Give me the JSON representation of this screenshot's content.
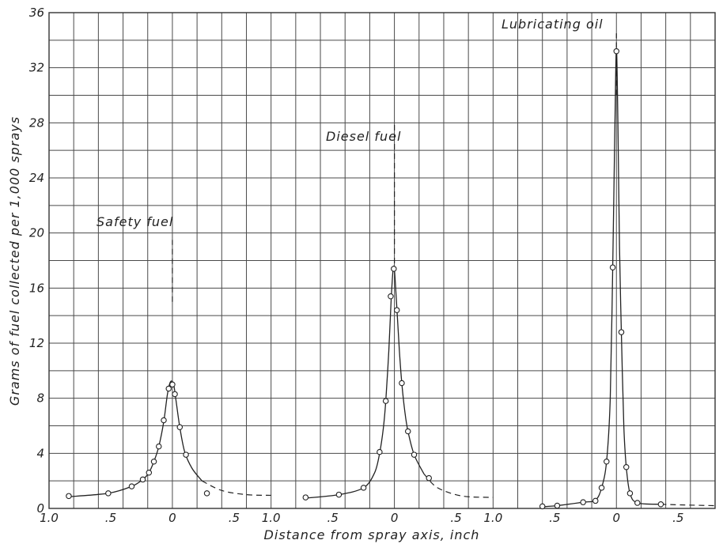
{
  "chart_data": {
    "type": "line",
    "ylabel": "Grams of fuel collected per 1,000 sprays",
    "xlabel": "Distance from spray axis, inch",
    "ylim": [
      0,
      36
    ],
    "y_ticks": [
      "0",
      "4",
      "8",
      "12",
      "16",
      "20",
      "24",
      "28",
      "32",
      "36"
    ],
    "x_tick_labels": [
      "1.0",
      ".5",
      "0",
      ".5"
    ],
    "grid": true,
    "panels": [
      {
        "name": "Safety fuel",
        "xlim": [
          -1.0,
          0.8
        ],
        "points": [
          [
            -0.84,
            0.9
          ],
          [
            -0.52,
            1.1
          ],
          [
            -0.33,
            1.6
          ],
          [
            -0.24,
            2.1
          ],
          [
            -0.19,
            2.6
          ],
          [
            -0.15,
            3.4
          ],
          [
            -0.11,
            4.5
          ],
          [
            -0.07,
            6.4
          ],
          [
            -0.03,
            8.7
          ],
          [
            0.0,
            9.0
          ],
          [
            0.02,
            8.3
          ],
          [
            0.06,
            5.9
          ],
          [
            0.11,
            3.9
          ],
          [
            0.28,
            1.1
          ]
        ],
        "curve": [
          [
            -0.84,
            0.85
          ],
          [
            -0.52,
            1.1
          ],
          [
            -0.33,
            1.6
          ],
          [
            -0.24,
            2.1
          ],
          [
            -0.19,
            2.6
          ],
          [
            -0.15,
            3.4
          ],
          [
            -0.11,
            4.5
          ],
          [
            -0.07,
            6.3
          ],
          [
            -0.04,
            8.3
          ],
          [
            -0.015,
            9.2
          ],
          [
            0.01,
            9.0
          ],
          [
            0.03,
            7.8
          ],
          [
            0.06,
            5.9
          ],
          [
            0.1,
            4.1
          ],
          [
            0.16,
            2.9
          ],
          [
            0.24,
            2.0
          ]
        ],
        "dashed_tail": [
          [
            0.24,
            2.0
          ],
          [
            0.4,
            1.3
          ],
          [
            0.6,
            1.0
          ],
          [
            0.8,
            0.95
          ]
        ],
        "axis_dash": [
          15,
          19.5
        ]
      },
      {
        "name": "Diesel fuel",
        "xlim": [
          -1.0,
          0.8
        ],
        "points": [
          [
            -0.72,
            0.8
          ],
          [
            -0.45,
            1.0
          ],
          [
            -0.25,
            1.5
          ],
          [
            -0.12,
            4.1
          ],
          [
            -0.07,
            7.8
          ],
          [
            -0.03,
            15.4
          ],
          [
            -0.005,
            17.4
          ],
          [
            0.02,
            14.4
          ],
          [
            0.06,
            9.1
          ],
          [
            0.11,
            5.6
          ],
          [
            0.16,
            3.9
          ],
          [
            0.28,
            2.2
          ]
        ],
        "curve": [
          [
            -0.72,
            0.75
          ],
          [
            -0.45,
            1.0
          ],
          [
            -0.25,
            1.5
          ],
          [
            -0.16,
            2.6
          ],
          [
            -0.12,
            4.0
          ],
          [
            -0.09,
            5.8
          ],
          [
            -0.07,
            7.8
          ],
          [
            -0.045,
            11.5
          ],
          [
            -0.025,
            15.4
          ],
          [
            -0.005,
            17.6
          ],
          [
            0.015,
            15.3
          ],
          [
            0.04,
            11.5
          ],
          [
            0.06,
            9.1
          ],
          [
            0.085,
            7.0
          ],
          [
            0.11,
            5.6
          ],
          [
            0.16,
            3.9
          ],
          [
            0.24,
            2.5
          ]
        ],
        "dashed_tail": [
          [
            0.24,
            2.5
          ],
          [
            0.35,
            1.5
          ],
          [
            0.55,
            0.9
          ],
          [
            0.8,
            0.8
          ]
        ],
        "axis_dash": [
          17.8,
          28
        ]
      },
      {
        "name": "Lubricating oil",
        "xlim": [
          -1.0,
          0.8
        ],
        "points": [
          [
            -0.6,
            0.15
          ],
          [
            -0.48,
            0.2
          ],
          [
            -0.27,
            0.45
          ],
          [
            -0.17,
            0.55
          ],
          [
            -0.12,
            1.5
          ],
          [
            -0.08,
            3.4
          ],
          [
            -0.03,
            17.5
          ],
          [
            0.0,
            33.2
          ],
          [
            0.04,
            12.8
          ],
          [
            0.08,
            3.0
          ],
          [
            0.11,
            1.1
          ],
          [
            0.17,
            0.4
          ],
          [
            0.36,
            0.3
          ]
        ],
        "curve": [
          [
            -0.6,
            0.12
          ],
          [
            -0.48,
            0.2
          ],
          [
            -0.27,
            0.45
          ],
          [
            -0.17,
            0.6
          ],
          [
            -0.12,
            1.5
          ],
          [
            -0.08,
            3.4
          ],
          [
            -0.05,
            8.0
          ],
          [
            -0.03,
            17.5
          ],
          [
            -0.012,
            28.0
          ],
          [
            0.0,
            33.4
          ],
          [
            0.012,
            28.0
          ],
          [
            0.025,
            19.0
          ],
          [
            0.04,
            12.8
          ],
          [
            0.06,
            6.0
          ],
          [
            0.08,
            3.0
          ],
          [
            0.11,
            1.1
          ],
          [
            0.17,
            0.4
          ],
          [
            0.36,
            0.3
          ]
        ],
        "dashed_tail": [
          [
            0.36,
            0.3
          ],
          [
            0.55,
            0.25
          ],
          [
            0.8,
            0.2
          ]
        ],
        "axis_dash": [
          30,
          34.5
        ]
      }
    ]
  }
}
